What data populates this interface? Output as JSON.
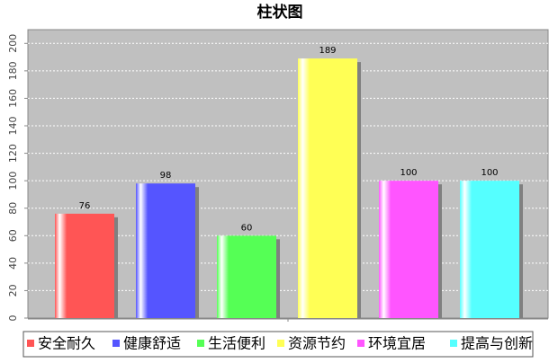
{
  "chart_data": {
    "type": "bar",
    "title": "柱状图",
    "categories": [
      null
    ],
    "series": [
      {
        "name": "安全耐久",
        "color": "#ff5555",
        "values": [
          76
        ]
      },
      {
        "name": "健康舒适",
        "color": "#5555ff",
        "values": [
          98
        ]
      },
      {
        "name": "生活便利",
        "color": "#55ff55",
        "values": [
          60
        ]
      },
      {
        "name": "资源节约",
        "color": "#ffff55",
        "values": [
          189
        ]
      },
      {
        "name": "环境宜居",
        "color": "#ff55ff",
        "values": [
          100
        ]
      },
      {
        "name": "提高与创新",
        "color": "#55ffff",
        "values": [
          100
        ]
      }
    ],
    "ylim": [
      0,
      210
    ],
    "yticks": [
      0,
      20,
      40,
      60,
      80,
      100,
      120,
      140,
      160,
      180,
      200
    ],
    "grid": true,
    "legend": "bottom"
  }
}
